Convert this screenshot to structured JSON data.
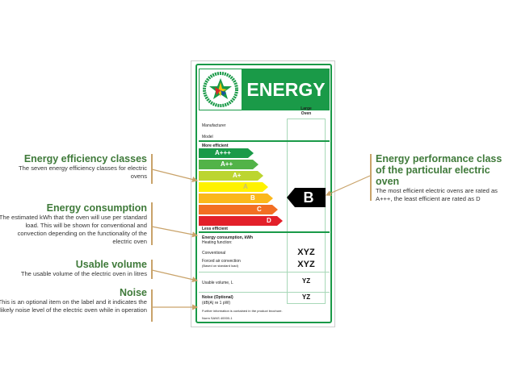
{
  "label": {
    "logo_text": "ENERGY EFFICIENCY · REPUBLIC OF SOUTH AFRICA",
    "header": "ENERGY",
    "column_header": [
      "Large",
      "Oven"
    ],
    "manufacturer": "Manufacturer",
    "model": "Model",
    "more_efficient": "More efficient",
    "less_efficient": "Less efficient",
    "classes": [
      {
        "label": "A+++",
        "color": "#1a9a48"
      },
      {
        "label": "A++",
        "color": "#52b348"
      },
      {
        "label": "A+",
        "color": "#bcd530"
      },
      {
        "label": "A",
        "color": "#fff200"
      },
      {
        "label": "B",
        "color": "#fbb81b"
      },
      {
        "label": "C",
        "color": "#f26f23"
      },
      {
        "label": "D",
        "color": "#e3202a"
      }
    ],
    "rating": "B",
    "energy_consumption": "Energy consumption, kWh",
    "heating_function": "Heating function:",
    "conventional": "Conventional",
    "conventional_value": "XYZ",
    "forced_air": "Forced air convection",
    "forced_air_note": "(Based on standard load)",
    "forced_air_value": "XYZ",
    "usable_volume": "Usable volume, L",
    "usable_volume_value": "YZ",
    "noise": "Noise (Optional)",
    "noise_unit": "(dB(A) re 1 pW)",
    "noise_value": "YZ",
    "further_info": "Further information is contained in the product brochure.",
    "norm": "Norm SANS 40000-1"
  },
  "annotations": {
    "classes": {
      "title": "Energy efficiency classes",
      "text": "The seven energy efficiency classes for electric ovens"
    },
    "consumption": {
      "title": "Energy consumption",
      "text": "The estimated kWh that the oven will use per standard load. This will be shown for conventional and convection depending on the functionality of the electric oven"
    },
    "volume": {
      "title": "Usable volume",
      "text": "The usable volume of the electric oven in litres"
    },
    "noise": {
      "title": "Noise",
      "text": "This is an optional item on the label and it indicates the likely noise level of the electric oven while in operation"
    },
    "performance": {
      "title": "Energy performance class of the particular electric oven",
      "text": "The most efficient electric ovens are rated as A+++, the least efficient are rated as D"
    }
  },
  "colors": {
    "green": "#1a9a48",
    "annotation_title": "#3f7a3a",
    "arrow": "#c9a36a"
  }
}
